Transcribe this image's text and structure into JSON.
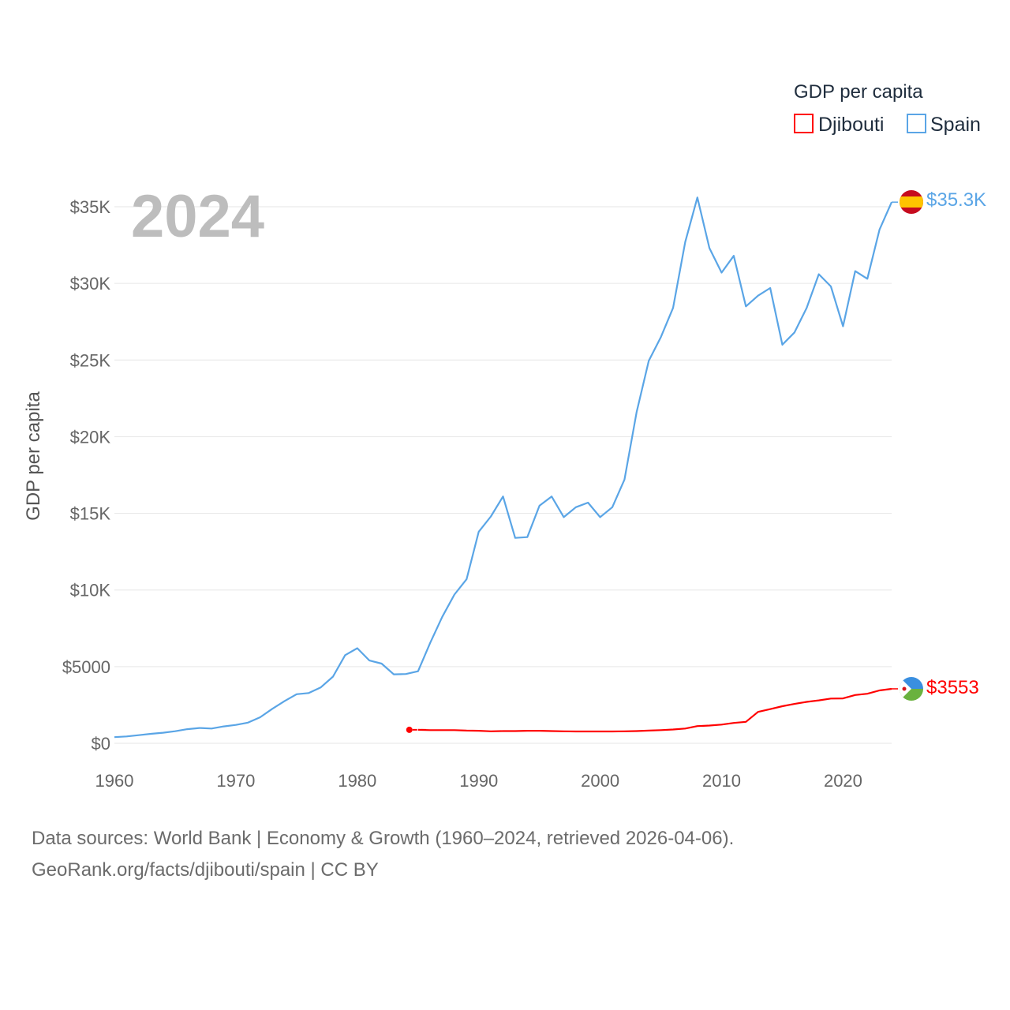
{
  "legend": {
    "title": "GDP per capita",
    "items": [
      {
        "label": "Djibouti",
        "color": "#ff0000"
      },
      {
        "label": "Spain",
        "color": "#5aa5e6"
      }
    ]
  },
  "year_label": "2024",
  "footer": {
    "line1": "Data sources: World Bank | Economy & Growth (1960–2024, retrieved 2026-04-06).",
    "line2": "GeoRank.org/facts/djibouti/spain | CC BY"
  },
  "chart_data": {
    "type": "line",
    "title": "",
    "xlabel": "",
    "ylabel": "GDP per capita",
    "xlim": [
      1960,
      2024
    ],
    "ylim": [
      0,
      35000
    ],
    "x_ticks": [
      1960,
      1970,
      1980,
      1990,
      2000,
      2010,
      2020
    ],
    "x_tick_labels": [
      "1960",
      "1970",
      "1980",
      "1990",
      "2000",
      "2010",
      "2020"
    ],
    "y_ticks": [
      0,
      5000,
      10000,
      15000,
      20000,
      25000,
      30000,
      35000
    ],
    "y_tick_labels": [
      "$0",
      "$5000",
      "$10K",
      "$15K",
      "$20K",
      "$25K",
      "$30K",
      "$35K"
    ],
    "grid": true,
    "series": [
      {
        "name": "Spain",
        "color": "#5aa5e6",
        "end_label": "$35.3K",
        "x": [
          1960,
          1961,
          1962,
          1963,
          1964,
          1965,
          1966,
          1967,
          1968,
          1969,
          1970,
          1971,
          1972,
          1973,
          1974,
          1975,
          1976,
          1977,
          1978,
          1979,
          1980,
          1981,
          1982,
          1983,
          1984,
          1985,
          1986,
          1987,
          1988,
          1989,
          1990,
          1991,
          1992,
          1993,
          1994,
          1995,
          1996,
          1997,
          1998,
          1999,
          2000,
          2001,
          2002,
          2003,
          2004,
          2005,
          2006,
          2007,
          2008,
          2009,
          2010,
          2011,
          2012,
          2013,
          2014,
          2015,
          2016,
          2017,
          2018,
          2019,
          2020,
          2021,
          2022,
          2023,
          2024
        ],
        "values": [
          400,
          450,
          530,
          620,
          690,
          790,
          920,
          1000,
          960,
          1100,
          1200,
          1350,
          1700,
          2250,
          2750,
          3200,
          3280,
          3650,
          4350,
          5750,
          6200,
          5400,
          5200,
          4500,
          4520,
          4700,
          6550,
          8250,
          9700,
          10700,
          13800,
          14800,
          16100,
          13400,
          13450,
          15500,
          16100,
          14750,
          15400,
          15700,
          14750,
          15400,
          17200,
          21600,
          24950,
          26500,
          28400,
          32700,
          35600,
          32300,
          30700,
          31800,
          28500,
          29200,
          29700,
          26000,
          26800,
          28400,
          30600,
          29800,
          27200,
          30800,
          30300,
          33500,
          35300
        ]
      },
      {
        "name": "Djibouti",
        "color": "#ff0000",
        "end_label": "$3553",
        "x": [
          1985,
          1986,
          1987,
          1988,
          1989,
          1990,
          1991,
          1992,
          1993,
          1994,
          1995,
          1996,
          1997,
          1998,
          1999,
          2000,
          2001,
          2002,
          2003,
          2004,
          2005,
          2006,
          2007,
          2008,
          2009,
          2010,
          2011,
          2012,
          2013,
          2014,
          2015,
          2016,
          2017,
          2018,
          2019,
          2020,
          2021,
          2022,
          2023,
          2024
        ],
        "values": [
          880,
          860,
          860,
          860,
          830,
          820,
          780,
          800,
          800,
          820,
          820,
          800,
          780,
          770,
          770,
          770,
          770,
          780,
          800,
          830,
          860,
          900,
          960,
          1120,
          1160,
          1220,
          1330,
          1400,
          2050,
          2230,
          2420,
          2570,
          2700,
          2800,
          2920,
          2930,
          3150,
          3230,
          3450,
          3553
        ]
      }
    ]
  }
}
